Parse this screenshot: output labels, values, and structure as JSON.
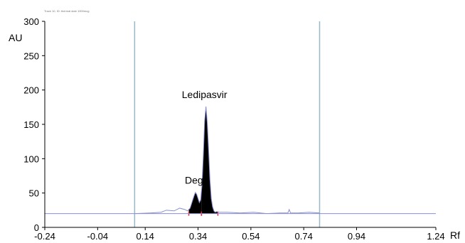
{
  "chart_data": {
    "type": "line",
    "header": "Track 10, ID: thermal stab 1000mcg",
    "ylabel": "AU",
    "xlabel": "Rf",
    "xlim": [
      -0.24,
      1.24
    ],
    "ylim": [
      0,
      300
    ],
    "x_ticks": [
      "-0.24",
      "-0.04",
      "0.14",
      "0.34",
      "0.54",
      "0.74",
      "0.94",
      "1.24"
    ],
    "x_tick_values": [
      -0.24,
      -0.04,
      0.14,
      0.34,
      0.54,
      0.74,
      0.94,
      1.24
    ],
    "y_ticks": [
      "0",
      "50",
      "100",
      "150",
      "200",
      "250",
      "300"
    ],
    "y_tick_values": [
      0,
      50,
      100,
      150,
      200,
      250,
      300
    ],
    "vertical_lines": [
      0.1,
      0.8
    ],
    "baseline": 20,
    "baseline_range": [
      -0.24,
      1.24
    ],
    "colors": {
      "trace": "#8a8fd4",
      "marker_line": "#9bb8c6",
      "peak_fill": "#000000",
      "marker": "#e0303a"
    },
    "series": [
      {
        "x": [
          0.1,
          0.16,
          0.2,
          0.22,
          0.25,
          0.27,
          0.29,
          0.3,
          0.31,
          0.315,
          0.32,
          0.325,
          0.33,
          0.335,
          0.34,
          0.345,
          0.35,
          0.355,
          0.36,
          0.365,
          0.37,
          0.375,
          0.38,
          0.385,
          0.39,
          0.395,
          0.4,
          0.405,
          0.41,
          0.42,
          0.45,
          0.5,
          0.55,
          0.6,
          0.65,
          0.68,
          0.685,
          0.69,
          0.72,
          0.76,
          0.8
        ],
        "y": [
          20,
          21,
          22,
          25,
          24,
          28,
          26,
          24,
          28,
          34,
          40,
          46,
          51,
          48,
          42,
          36,
          40,
          62,
          105,
          155,
          176,
          152,
          112,
          70,
          42,
          30,
          24,
          22,
          23,
          22,
          22,
          21,
          22,
          20,
          21,
          21,
          26,
          21,
          21,
          22,
          21
        ]
      }
    ],
    "peaks": [
      {
        "label": "Deg",
        "x": 0.33,
        "y": 51,
        "start": 0.305,
        "end": 0.353
      },
      {
        "label": "Ledipasvir",
        "x": 0.37,
        "y": 176,
        "start": 0.353,
        "end": 0.415
      }
    ]
  }
}
